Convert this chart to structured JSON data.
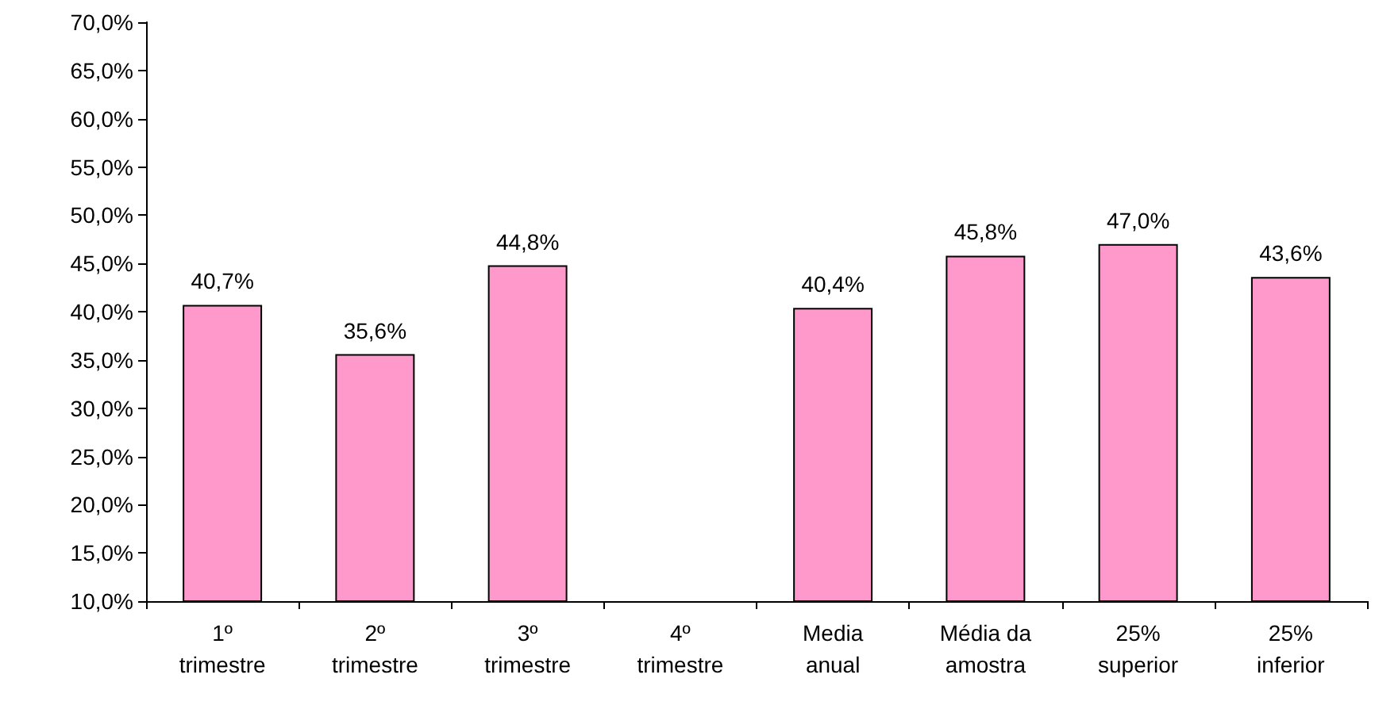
{
  "chart_data": {
    "type": "bar",
    "categories": [
      "1º\ntrimestre",
      "2º\ntrimestre",
      "3º\ntrimestre",
      "4º\ntrimestre",
      "Media\nanual",
      "Média da\namostra",
      "25%\nsuperior",
      "25%\ninferior"
    ],
    "values": [
      40.7,
      35.6,
      44.8,
      10,
      40.4,
      45.8,
      47.0,
      43.6
    ],
    "value_labels": [
      "40,7%",
      "35,6%",
      "44,8%",
      null,
      "40,4%",
      "45,8%",
      "47,0%",
      "43,6%"
    ],
    "color": "#ff99cc",
    "ylim": [
      10,
      70
    ],
    "yticks": [
      {
        "value": 10,
        "label": "10,0%"
      },
      {
        "value": 15,
        "label": "15,0%"
      },
      {
        "value": 20,
        "label": "20,0%"
      },
      {
        "value": 25,
        "label": "25,0%"
      },
      {
        "value": 30,
        "label": "30,0%"
      },
      {
        "value": 35,
        "label": "35,0%"
      },
      {
        "value": 40,
        "label": "40,0%"
      },
      {
        "value": 45,
        "label": "45,0%"
      },
      {
        "value": 50,
        "label": "50,0%"
      },
      {
        "value": 55,
        "label": "55,0%"
      },
      {
        "value": 60,
        "label": "60,0%"
      },
      {
        "value": 65,
        "label": "65,0%"
      },
      {
        "value": 70,
        "label": "70,0%"
      }
    ],
    "grid": false
  }
}
